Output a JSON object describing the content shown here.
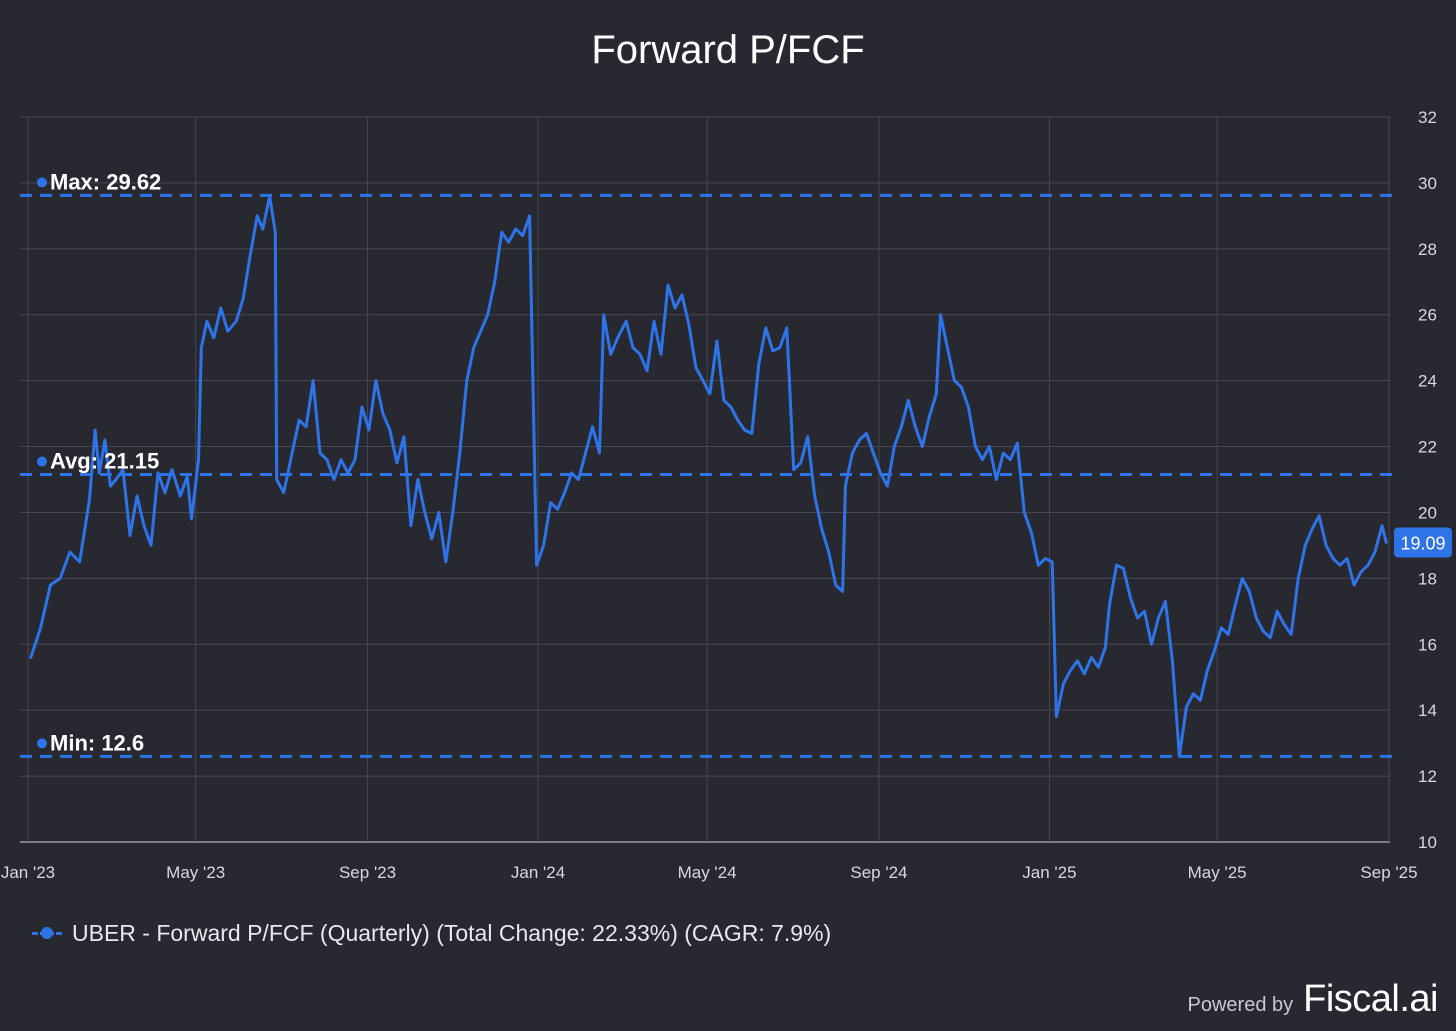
{
  "chart_data": {
    "type": "line",
    "title": "Forward P/FCF",
    "x_tick_labels": [
      "Jan '23",
      "May '23",
      "Sep '23",
      "Jan '24",
      "May '24",
      "Sep '24",
      "Jan '25",
      "May '25",
      "Sep '25"
    ],
    "y_tick_labels": [
      "10",
      "12",
      "14",
      "16",
      "18",
      "20",
      "22",
      "24",
      "26",
      "28",
      "30",
      "32"
    ],
    "ylim": [
      10,
      32
    ],
    "xlim": [
      "2023-01-01",
      "2025-09-01"
    ],
    "grid": true,
    "legend_placement": "bottom-left",
    "series": [
      {
        "name": "UBER - Forward P/FCF (Quarterly) (Total Change: 22.33%) (CAGR: 7.9%)",
        "color": "#2e74e8",
        "last_value_label": "19.09",
        "points": [
          [
            "2023-01-03",
            15.6
          ],
          [
            "2023-01-10",
            16.5
          ],
          [
            "2023-01-17",
            17.8
          ],
          [
            "2023-01-24",
            18.0
          ],
          [
            "2023-01-31",
            18.8
          ],
          [
            "2023-02-07",
            18.5
          ],
          [
            "2023-02-14",
            20.4
          ],
          [
            "2023-02-18",
            22.5
          ],
          [
            "2023-02-21",
            21.2
          ],
          [
            "2023-02-25",
            22.2
          ],
          [
            "2023-03-01",
            20.8
          ],
          [
            "2023-03-05",
            21.0
          ],
          [
            "2023-03-10",
            21.3
          ],
          [
            "2023-03-15",
            19.3
          ],
          [
            "2023-03-20",
            20.5
          ],
          [
            "2023-03-25",
            19.6
          ],
          [
            "2023-03-30",
            19.0
          ],
          [
            "2023-04-04",
            21.2
          ],
          [
            "2023-04-09",
            20.6
          ],
          [
            "2023-04-14",
            21.3
          ],
          [
            "2023-04-20",
            20.5
          ],
          [
            "2023-04-25",
            21.1
          ],
          [
            "2023-04-28",
            19.8
          ],
          [
            "2023-05-03",
            21.6
          ],
          [
            "2023-05-05",
            25.0
          ],
          [
            "2023-05-09",
            25.8
          ],
          [
            "2023-05-14",
            25.3
          ],
          [
            "2023-05-19",
            26.2
          ],
          [
            "2023-05-24",
            25.5
          ],
          [
            "2023-05-30",
            25.8
          ],
          [
            "2023-06-04",
            26.5
          ],
          [
            "2023-06-09",
            27.8
          ],
          [
            "2023-06-14",
            29.0
          ],
          [
            "2023-06-18",
            28.6
          ],
          [
            "2023-06-23",
            29.6
          ],
          [
            "2023-06-27",
            28.5
          ],
          [
            "2023-06-28",
            21.0
          ],
          [
            "2023-07-03",
            20.6
          ],
          [
            "2023-07-08",
            21.6
          ],
          [
            "2023-07-14",
            22.8
          ],
          [
            "2023-07-19",
            22.6
          ],
          [
            "2023-07-24",
            24.0
          ],
          [
            "2023-07-29",
            21.8
          ],
          [
            "2023-08-03",
            21.6
          ],
          [
            "2023-08-08",
            21.0
          ],
          [
            "2023-08-13",
            21.6
          ],
          [
            "2023-08-18",
            21.2
          ],
          [
            "2023-08-23",
            21.6
          ],
          [
            "2023-08-28",
            23.2
          ],
          [
            "2023-09-02",
            22.5
          ],
          [
            "2023-09-07",
            24.0
          ],
          [
            "2023-09-12",
            23.0
          ],
          [
            "2023-09-17",
            22.5
          ],
          [
            "2023-09-22",
            21.5
          ],
          [
            "2023-09-27",
            22.3
          ],
          [
            "2023-10-02",
            19.6
          ],
          [
            "2023-10-07",
            21.0
          ],
          [
            "2023-10-12",
            20.0
          ],
          [
            "2023-10-17",
            19.2
          ],
          [
            "2023-10-22",
            20.0
          ],
          [
            "2023-10-27",
            18.5
          ],
          [
            "2023-11-01",
            20.0
          ],
          [
            "2023-11-06",
            21.8
          ],
          [
            "2023-11-11",
            24.0
          ],
          [
            "2023-11-16",
            25.0
          ],
          [
            "2023-11-21",
            25.5
          ],
          [
            "2023-11-26",
            26.0
          ],
          [
            "2023-12-01",
            27.0
          ],
          [
            "2023-12-06",
            28.5
          ],
          [
            "2023-12-11",
            28.2
          ],
          [
            "2023-12-16",
            28.6
          ],
          [
            "2023-12-21",
            28.4
          ],
          [
            "2023-12-26",
            29.0
          ],
          [
            "2023-12-31",
            18.4
          ],
          [
            "2024-01-05",
            19.0
          ],
          [
            "2024-01-10",
            20.3
          ],
          [
            "2024-01-15",
            20.1
          ],
          [
            "2024-01-20",
            20.6
          ],
          [
            "2024-01-25",
            21.2
          ],
          [
            "2024-01-30",
            21.0
          ],
          [
            "2024-02-04",
            21.8
          ],
          [
            "2024-02-09",
            22.6
          ],
          [
            "2024-02-14",
            21.8
          ],
          [
            "2024-02-17",
            26.0
          ],
          [
            "2024-02-22",
            24.8
          ],
          [
            "2024-02-27",
            25.3
          ],
          [
            "2024-03-04",
            25.8
          ],
          [
            "2024-03-09",
            25.0
          ],
          [
            "2024-03-14",
            24.8
          ],
          [
            "2024-03-19",
            24.3
          ],
          [
            "2024-03-24",
            25.8
          ],
          [
            "2024-03-29",
            24.8
          ],
          [
            "2024-04-03",
            26.9
          ],
          [
            "2024-04-08",
            26.2
          ],
          [
            "2024-04-13",
            26.6
          ],
          [
            "2024-04-18",
            25.7
          ],
          [
            "2024-04-23",
            24.4
          ],
          [
            "2024-04-28",
            24.0
          ],
          [
            "2024-05-03",
            23.6
          ],
          [
            "2024-05-08",
            25.2
          ],
          [
            "2024-05-13",
            23.4
          ],
          [
            "2024-05-18",
            23.2
          ],
          [
            "2024-05-23",
            22.8
          ],
          [
            "2024-05-28",
            22.5
          ],
          [
            "2024-06-02",
            22.4
          ],
          [
            "2024-06-07",
            24.5
          ],
          [
            "2024-06-12",
            25.6
          ],
          [
            "2024-06-17",
            24.9
          ],
          [
            "2024-06-22",
            25.0
          ],
          [
            "2024-06-27",
            25.6
          ],
          [
            "2024-07-02",
            21.3
          ],
          [
            "2024-07-07",
            21.5
          ],
          [
            "2024-07-12",
            22.3
          ],
          [
            "2024-07-17",
            20.5
          ],
          [
            "2024-07-22",
            19.5
          ],
          [
            "2024-07-27",
            18.8
          ],
          [
            "2024-08-01",
            17.8
          ],
          [
            "2024-08-06",
            17.6
          ],
          [
            "2024-08-08",
            20.8
          ],
          [
            "2024-08-13",
            21.8
          ],
          [
            "2024-08-18",
            22.2
          ],
          [
            "2024-08-23",
            22.4
          ],
          [
            "2024-08-28",
            21.8
          ],
          [
            "2024-09-02",
            21.2
          ],
          [
            "2024-09-07",
            20.8
          ],
          [
            "2024-09-12",
            22.0
          ],
          [
            "2024-09-17",
            22.6
          ],
          [
            "2024-09-22",
            23.4
          ],
          [
            "2024-09-27",
            22.6
          ],
          [
            "2024-10-02",
            22.0
          ],
          [
            "2024-10-07",
            22.9
          ],
          [
            "2024-10-12",
            23.6
          ],
          [
            "2024-10-15",
            26.0
          ],
          [
            "2024-10-20",
            25.0
          ],
          [
            "2024-10-25",
            24.0
          ],
          [
            "2024-10-30",
            23.8
          ],
          [
            "2024-11-04",
            23.2
          ],
          [
            "2024-11-09",
            22.0
          ],
          [
            "2024-11-14",
            21.6
          ],
          [
            "2024-11-19",
            22.0
          ],
          [
            "2024-11-24",
            21.0
          ],
          [
            "2024-11-29",
            21.8
          ],
          [
            "2024-12-04",
            21.6
          ],
          [
            "2024-12-09",
            22.1
          ],
          [
            "2024-12-14",
            20.0
          ],
          [
            "2024-12-19",
            19.4
          ],
          [
            "2024-12-24",
            18.4
          ],
          [
            "2024-12-29",
            18.6
          ],
          [
            "2025-01-03",
            18.5
          ],
          [
            "2025-01-06",
            13.8
          ],
          [
            "2025-01-11",
            14.8
          ],
          [
            "2025-01-16",
            15.2
          ],
          [
            "2025-01-21",
            15.5
          ],
          [
            "2025-01-26",
            15.1
          ],
          [
            "2025-01-31",
            15.6
          ],
          [
            "2025-02-05",
            15.3
          ],
          [
            "2025-02-10",
            15.9
          ],
          [
            "2025-02-13",
            17.2
          ],
          [
            "2025-02-18",
            18.4
          ],
          [
            "2025-02-23",
            18.3
          ],
          [
            "2025-02-28",
            17.4
          ],
          [
            "2025-03-05",
            16.8
          ],
          [
            "2025-03-10",
            17.0
          ],
          [
            "2025-03-15",
            16.0
          ],
          [
            "2025-03-20",
            16.8
          ],
          [
            "2025-03-25",
            17.3
          ],
          [
            "2025-03-30",
            15.5
          ],
          [
            "2025-04-04",
            12.6
          ],
          [
            "2025-04-09",
            14.1
          ],
          [
            "2025-04-14",
            14.5
          ],
          [
            "2025-04-19",
            14.3
          ],
          [
            "2025-04-24",
            15.2
          ],
          [
            "2025-04-29",
            15.8
          ],
          [
            "2025-05-04",
            16.5
          ],
          [
            "2025-05-09",
            16.3
          ],
          [
            "2025-05-14",
            17.2
          ],
          [
            "2025-05-19",
            18.0
          ],
          [
            "2025-05-24",
            17.6
          ],
          [
            "2025-05-29",
            16.8
          ],
          [
            "2025-06-03",
            16.4
          ],
          [
            "2025-06-08",
            16.2
          ],
          [
            "2025-06-13",
            17.0
          ],
          [
            "2025-06-18",
            16.6
          ],
          [
            "2025-06-23",
            16.3
          ],
          [
            "2025-06-28",
            18.0
          ],
          [
            "2025-07-03",
            19.0
          ],
          [
            "2025-07-08",
            19.5
          ],
          [
            "2025-07-13",
            19.9
          ],
          [
            "2025-07-18",
            19.0
          ],
          [
            "2025-07-23",
            18.6
          ],
          [
            "2025-07-28",
            18.4
          ],
          [
            "2025-08-02",
            18.6
          ],
          [
            "2025-08-07",
            17.8
          ],
          [
            "2025-08-12",
            18.2
          ],
          [
            "2025-08-17",
            18.4
          ],
          [
            "2025-08-22",
            18.8
          ],
          [
            "2025-08-27",
            19.6
          ],
          [
            "2025-08-30",
            19.09
          ]
        ]
      }
    ],
    "reference_lines": [
      {
        "label": "Max: 29.62",
        "value": 29.62
      },
      {
        "label": "Avg: 21.15",
        "value": 21.15
      },
      {
        "label": "Min: 12.6",
        "value": 12.6
      }
    ]
  },
  "footer": {
    "powered_by": "Powered by",
    "brand": "Fiscal.ai"
  }
}
